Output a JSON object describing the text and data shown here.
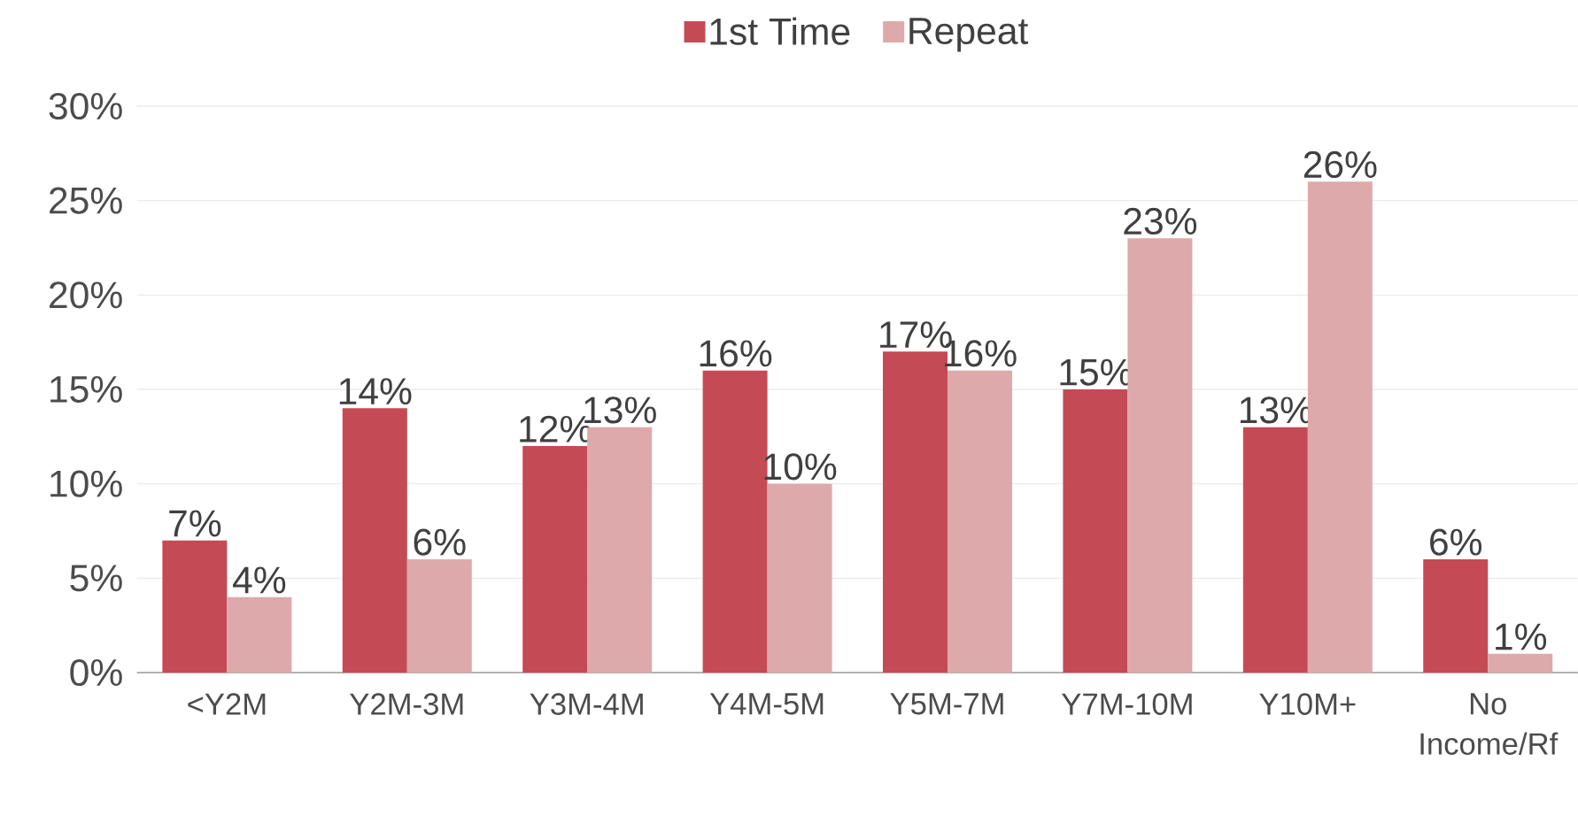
{
  "chart_data": {
    "type": "bar",
    "categories": [
      "<Y2M",
      "Y2M-3M",
      "Y3M-4M",
      "Y4M-5M",
      "Y5M-7M",
      "Y7M-10M",
      "Y10M+",
      "No Income/Rf"
    ],
    "series": [
      {
        "name": "1st Time",
        "color": "#c44a55",
        "values": [
          7,
          14,
          12,
          16,
          17,
          15,
          13,
          6
        ],
        "value_labels": [
          "7%",
          "14%",
          "12%",
          "16%",
          "17%",
          "15%",
          "13%",
          "6%"
        ]
      },
      {
        "name": "Repeat",
        "color": "#dea9aa",
        "values": [
          4,
          6,
          13,
          10,
          16,
          23,
          26,
          1
        ],
        "value_labels": [
          "4%",
          "6%",
          "13%",
          "10%",
          "16%",
          "23%",
          "26%",
          "1%"
        ]
      }
    ],
    "ylim": [
      0,
      30
    ],
    "yticks": [
      {
        "value": 0,
        "label": "0%"
      },
      {
        "value": 5,
        "label": "5%"
      },
      {
        "value": 10,
        "label": "10%"
      },
      {
        "value": 15,
        "label": "15%"
      },
      {
        "value": 20,
        "label": "20%"
      },
      {
        "value": 25,
        "label": "25%"
      },
      {
        "value": 30,
        "label": "30%"
      }
    ],
    "grid": "y",
    "legend": "top"
  }
}
